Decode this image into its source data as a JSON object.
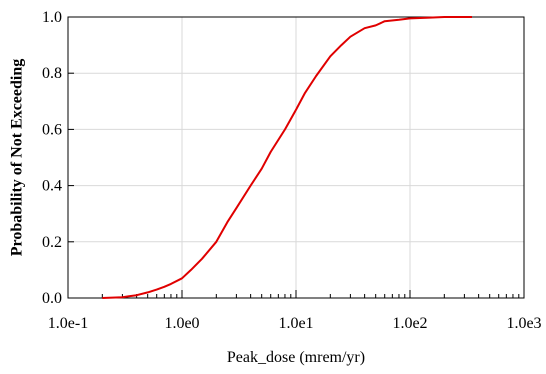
{
  "chart_data": {
    "type": "line",
    "title": "",
    "xlabel": "Peak_dose (mrem/yr)",
    "ylabel": "Probability of Not Exceeding",
    "x_scale": "log",
    "xlim": [
      0.1,
      1000
    ],
    "ylim": [
      0,
      1
    ],
    "x_ticks": [
      0.1,
      1,
      10,
      100,
      1000
    ],
    "x_tick_labels": [
      "1.0e-1",
      "1.0e0",
      "1.0e1",
      "1.0e2",
      "1.0e3"
    ],
    "y_ticks": [
      0,
      0.2,
      0.4,
      0.6,
      0.8,
      1.0
    ],
    "y_tick_labels": [
      "0.0",
      "0.2",
      "0.4",
      "0.6",
      "0.8",
      "1.0"
    ],
    "grid": true,
    "series": [
      {
        "color": "#e00000",
        "x": [
          0.2,
          0.3,
          0.4,
          0.5,
          0.6,
          0.7,
          0.8,
          1.0,
          1.2,
          1.5,
          2.0,
          2.5,
          3.0,
          4.0,
          5.0,
          6.0,
          8.0,
          10.0,
          12.0,
          15.0,
          20.0,
          25.0,
          30.0,
          40.0,
          50.0,
          60.0,
          80.0,
          100.0,
          150.0,
          200.0,
          350.0
        ],
        "y": [
          0.0,
          0.003,
          0.01,
          0.02,
          0.03,
          0.04,
          0.05,
          0.07,
          0.1,
          0.14,
          0.2,
          0.27,
          0.32,
          0.4,
          0.46,
          0.52,
          0.6,
          0.67,
          0.73,
          0.79,
          0.86,
          0.9,
          0.93,
          0.96,
          0.97,
          0.985,
          0.99,
          0.995,
          0.998,
          1.0,
          1.0
        ]
      }
    ]
  }
}
